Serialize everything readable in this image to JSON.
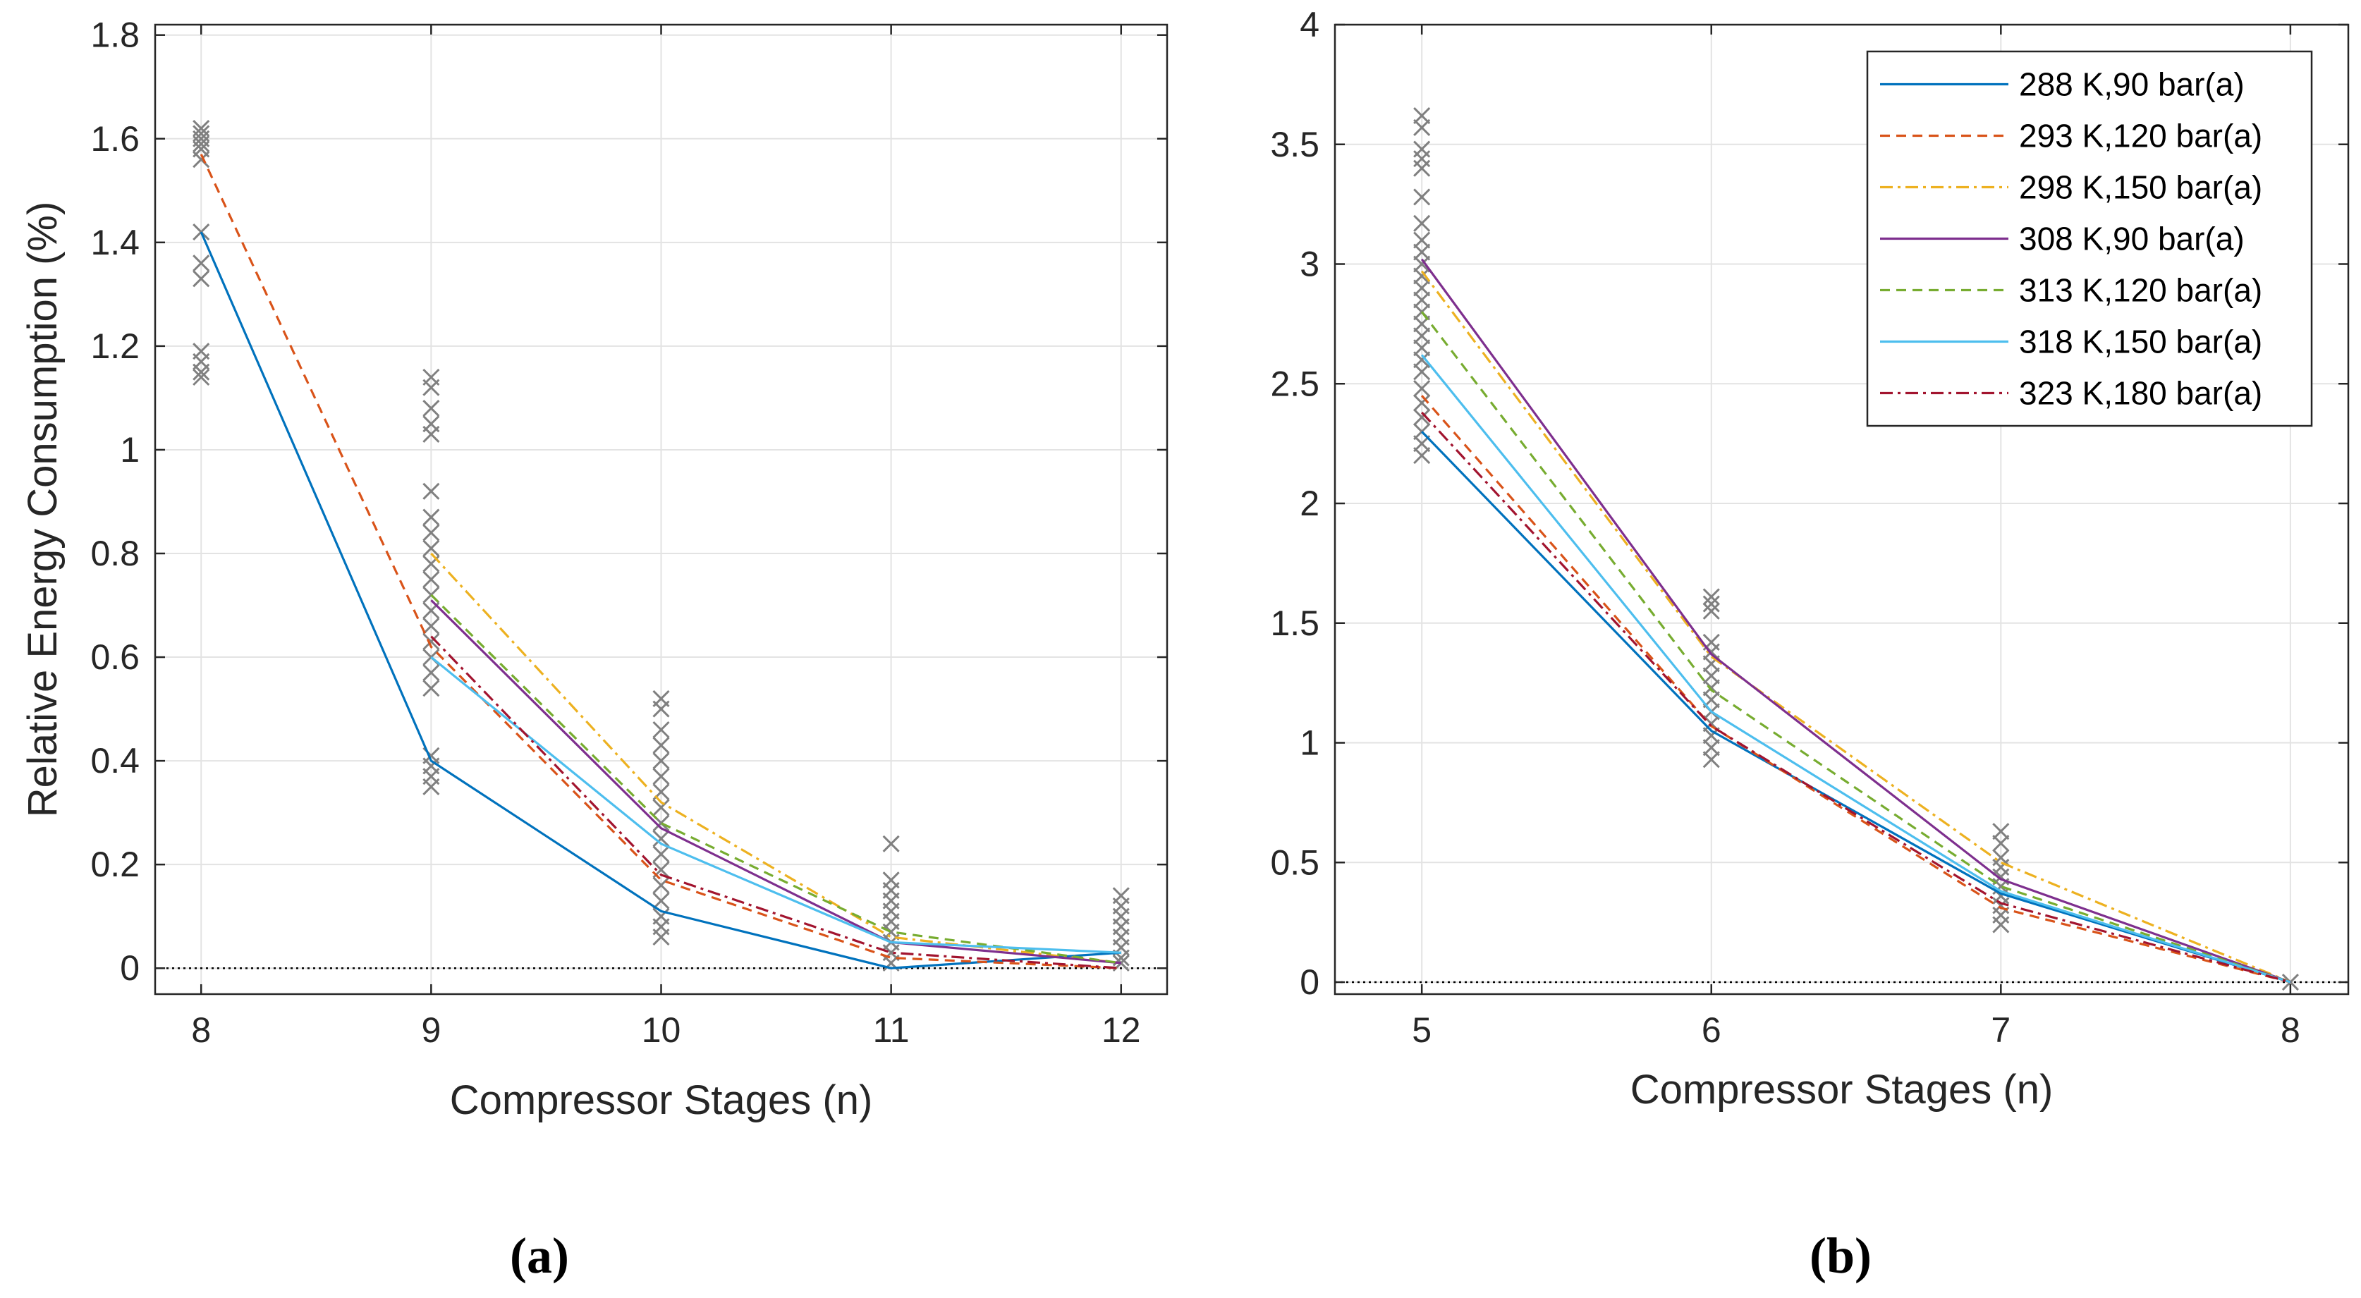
{
  "chart_data": [
    {
      "type": "line",
      "panel_label": "(a)",
      "xlabel": "Compressor Stages (n)",
      "ylabel": "Relative Energy Consumption (%)",
      "xlim": [
        7.8,
        12.2
      ],
      "ylim": [
        -0.05,
        1.82
      ],
      "xticks": [
        8,
        9,
        10,
        11,
        12
      ],
      "yticks": [
        0,
        0.2,
        0.4,
        0.6,
        0.8,
        1,
        1.2,
        1.4,
        1.6,
        1.8
      ],
      "x": [
        8,
        9,
        10,
        11,
        12
      ],
      "series": [
        {
          "name": "288 K,90 bar(a)",
          "color": "#0072BD",
          "dash": "solid",
          "values": [
            1.42,
            0.4,
            0.11,
            0.0,
            0.03
          ]
        },
        {
          "name": "293 K,120 bar(a)",
          "color": "#D95319",
          "dash": "dashed",
          "values": [
            1.57,
            0.62,
            0.17,
            0.02,
            0.0
          ]
        },
        {
          "name": "298 K,150 bar(a)",
          "color": "#EDB120",
          "dash": "dashdot",
          "values": [
            null,
            0.8,
            0.32,
            0.06,
            0.01
          ]
        },
        {
          "name": "308 K,90 bar(a)",
          "color": "#7E2F8E",
          "dash": "solid",
          "values": [
            null,
            0.71,
            0.27,
            0.05,
            0.01
          ]
        },
        {
          "name": "313 K,120 bar(a)",
          "color": "#77AC30",
          "dash": "dashed",
          "values": [
            null,
            0.72,
            0.28,
            0.07,
            0.01
          ]
        },
        {
          "name": "318 K,150 bar(a)",
          "color": "#4DBEEE",
          "dash": "solid",
          "values": [
            null,
            0.6,
            0.24,
            0.05,
            0.03
          ]
        },
        {
          "name": "323 K,180 bar(a)",
          "color": "#A2142F",
          "dash": "dashdot",
          "values": [
            null,
            0.64,
            0.18,
            0.03,
            0.0
          ]
        }
      ],
      "scatter": {
        "marker": "x",
        "color": "#808080",
        "points": [
          [
            8,
            1.62
          ],
          [
            8,
            1.6
          ],
          [
            8,
            1.58
          ],
          [
            8,
            1.56
          ],
          [
            8,
            1.61
          ],
          [
            8,
            1.59
          ],
          [
            8,
            1.42
          ],
          [
            8,
            1.36
          ],
          [
            8,
            1.33
          ],
          [
            8,
            1.19
          ],
          [
            8,
            1.17
          ],
          [
            8,
            1.15
          ],
          [
            8,
            1.14
          ],
          [
            9,
            1.14
          ],
          [
            9,
            1.12
          ],
          [
            9,
            1.08
          ],
          [
            9,
            1.05
          ],
          [
            9,
            1.03
          ],
          [
            9,
            0.92
          ],
          [
            9,
            0.87
          ],
          [
            9,
            0.84
          ],
          [
            9,
            0.81
          ],
          [
            9,
            0.78
          ],
          [
            9,
            0.75
          ],
          [
            9,
            0.72
          ],
          [
            9,
            0.69
          ],
          [
            9,
            0.66
          ],
          [
            9,
            0.63
          ],
          [
            9,
            0.6
          ],
          [
            9,
            0.57
          ],
          [
            9,
            0.54
          ],
          [
            9,
            0.41
          ],
          [
            9,
            0.39
          ],
          [
            9,
            0.37
          ],
          [
            9,
            0.35
          ],
          [
            10,
            0.52
          ],
          [
            10,
            0.5
          ],
          [
            10,
            0.46
          ],
          [
            10,
            0.43
          ],
          [
            10,
            0.4
          ],
          [
            10,
            0.37
          ],
          [
            10,
            0.34
          ],
          [
            10,
            0.31
          ],
          [
            10,
            0.28
          ],
          [
            10,
            0.25
          ],
          [
            10,
            0.22
          ],
          [
            10,
            0.19
          ],
          [
            10,
            0.16
          ],
          [
            10,
            0.13
          ],
          [
            10,
            0.1
          ],
          [
            10,
            0.08
          ],
          [
            10,
            0.06
          ],
          [
            11,
            0.24
          ],
          [
            11,
            0.17
          ],
          [
            11,
            0.15
          ],
          [
            11,
            0.13
          ],
          [
            11,
            0.11
          ],
          [
            11,
            0.09
          ],
          [
            11,
            0.07
          ],
          [
            11,
            0.05
          ],
          [
            11,
            0.03
          ],
          [
            11,
            0.01
          ],
          [
            12,
            0.14
          ],
          [
            12,
            0.12
          ],
          [
            12,
            0.1
          ],
          [
            12,
            0.08
          ],
          [
            12,
            0.06
          ],
          [
            12,
            0.04
          ],
          [
            12,
            0.02
          ],
          [
            12,
            0.01
          ]
        ]
      },
      "reference_line": {
        "y": 0,
        "style": "dotted"
      },
      "grid": true
    },
    {
      "type": "line",
      "panel_label": "(b)",
      "xlabel": "Compressor Stages (n)",
      "ylabel": "",
      "xlim": [
        4.7,
        8.2
      ],
      "ylim": [
        -0.05,
        4.0
      ],
      "xticks": [
        5,
        6,
        7,
        8
      ],
      "yticks": [
        0,
        0.5,
        1,
        1.5,
        2,
        2.5,
        3,
        3.5,
        4
      ],
      "x": [
        5,
        6,
        7,
        8
      ],
      "series": [
        {
          "name": "288 K,90 bar(a)",
          "color": "#0072BD",
          "dash": "solid",
          "values": [
            2.3,
            1.05,
            0.37,
            0.0
          ]
        },
        {
          "name": "293 K,120 bar(a)",
          "color": "#D95319",
          "dash": "dashed",
          "values": [
            2.45,
            1.07,
            0.31,
            0.0
          ]
        },
        {
          "name": "298 K,150 bar(a)",
          "color": "#EDB120",
          "dash": "dashdot",
          "values": [
            2.97,
            1.36,
            0.5,
            0.0
          ]
        },
        {
          "name": "308 K,90 bar(a)",
          "color": "#7E2F8E",
          "dash": "solid",
          "values": [
            3.02,
            1.37,
            0.43,
            0.0
          ]
        },
        {
          "name": "313 K,120 bar(a)",
          "color": "#77AC30",
          "dash": "dashed",
          "values": [
            2.8,
            1.22,
            0.4,
            0.0
          ]
        },
        {
          "name": "318 K,150 bar(a)",
          "color": "#4DBEEE",
          "dash": "solid",
          "values": [
            2.62,
            1.13,
            0.38,
            0.0
          ]
        },
        {
          "name": "323 K,180 bar(a)",
          "color": "#A2142F",
          "dash": "dashdot",
          "values": [
            2.38,
            1.07,
            0.33,
            0.0
          ]
        }
      ],
      "scatter": {
        "marker": "x",
        "color": "#808080",
        "points": [
          [
            5,
            3.62
          ],
          [
            5,
            3.57
          ],
          [
            5,
            3.48
          ],
          [
            5,
            3.44
          ],
          [
            5,
            3.4
          ],
          [
            5,
            3.28
          ],
          [
            5,
            3.17
          ],
          [
            5,
            3.1
          ],
          [
            5,
            3.05
          ],
          [
            5,
            3.0
          ],
          [
            5,
            2.95
          ],
          [
            5,
            2.9
          ],
          [
            5,
            2.85
          ],
          [
            5,
            2.8
          ],
          [
            5,
            2.75
          ],
          [
            5,
            2.7
          ],
          [
            5,
            2.65
          ],
          [
            5,
            2.6
          ],
          [
            5,
            2.55
          ],
          [
            5,
            2.48
          ],
          [
            5,
            2.42
          ],
          [
            5,
            2.36
          ],
          [
            5,
            2.3
          ],
          [
            5,
            2.25
          ],
          [
            5,
            2.2
          ],
          [
            6,
            1.61
          ],
          [
            6,
            1.58
          ],
          [
            6,
            1.55
          ],
          [
            6,
            1.42
          ],
          [
            6,
            1.38
          ],
          [
            6,
            1.33
          ],
          [
            6,
            1.28
          ],
          [
            6,
            1.23
          ],
          [
            6,
            1.18
          ],
          [
            6,
            1.13
          ],
          [
            6,
            1.08
          ],
          [
            6,
            1.03
          ],
          [
            6,
            0.98
          ],
          [
            6,
            0.93
          ],
          [
            7,
            0.63
          ],
          [
            7,
            0.58
          ],
          [
            7,
            0.52
          ],
          [
            7,
            0.48
          ],
          [
            7,
            0.44
          ],
          [
            7,
            0.4
          ],
          [
            7,
            0.36
          ],
          [
            7,
            0.32
          ],
          [
            7,
            0.28
          ],
          [
            7,
            0.24
          ],
          [
            8,
            0.0
          ]
        ]
      },
      "reference_line": {
        "y": 0,
        "style": "dotted"
      },
      "grid": true,
      "legend": "top-right"
    }
  ]
}
